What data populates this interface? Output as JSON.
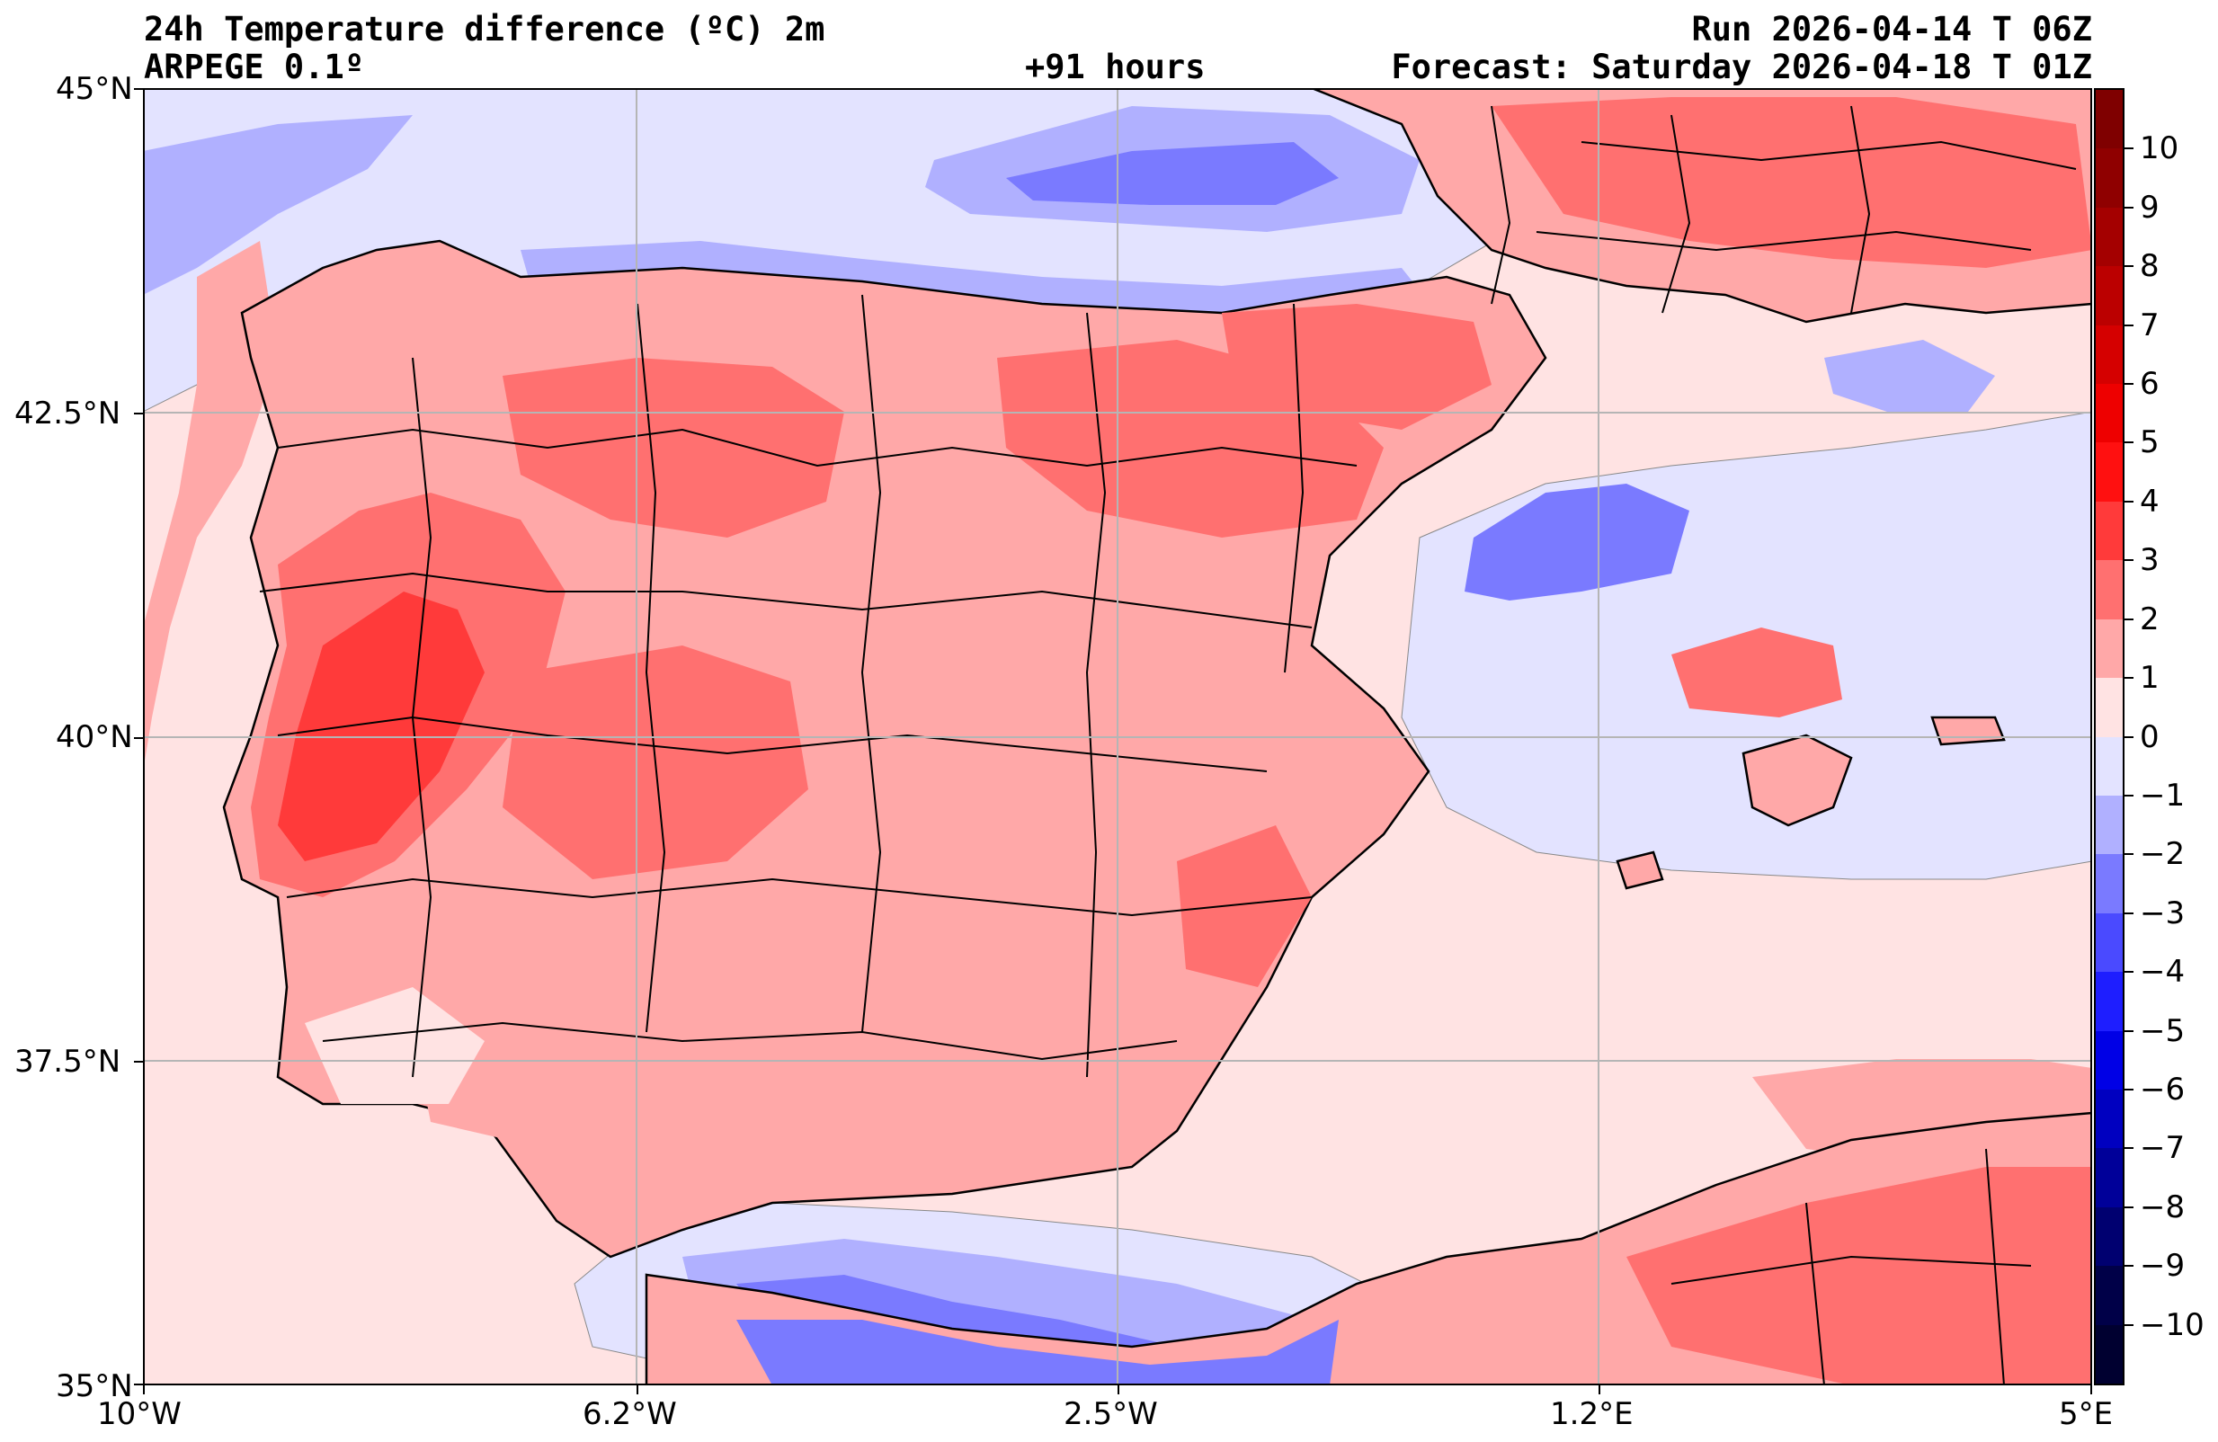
{
  "header": {
    "title": "24h Temperature difference (ºC) 2m",
    "model": "ARPEGE 0.1º",
    "lead_time": "+91 hours",
    "run": "Run 2026-04-14 T 06Z",
    "forecast": "Forecast: Saturday 2026-04-18 T 01Z"
  },
  "axes": {
    "lat_labels": [
      "45°N",
      "42.5°N",
      "40°N",
      "37.5°N",
      "35°N"
    ],
    "lon_labels": [
      "10°W",
      "6.2°W",
      "2.5°W",
      "1.2°E",
      "5°E"
    ]
  },
  "colorbar": {
    "labels": [
      "10",
      "9",
      "8",
      "7",
      "6",
      "5",
      "4",
      "3",
      "2",
      "1",
      "0",
      "−1",
      "−2",
      "−3",
      "−4",
      "−5",
      "−6",
      "−7",
      "−8",
      "−9",
      "−10"
    ],
    "colors": [
      "#7f0000",
      "#8f0000",
      "#a40000",
      "#bb0000",
      "#d50000",
      "#ee0000",
      "#ff1010",
      "#ff3a3a",
      "#ff7070",
      "#ffa8a8",
      "#ffe3e3",
      "#e3e3ff",
      "#b0b0ff",
      "#7a7aff",
      "#4a4aff",
      "#1e1eff",
      "#0000e6",
      "#0000c0",
      "#000099",
      "#000070",
      "#000048"
    ]
  },
  "map": {
    "extent": {
      "lon": [
        -10,
        5
      ],
      "lat": [
        35,
        45
      ]
    },
    "field": "24h Temperature difference 2m",
    "units": "ºC",
    "projection": "PlateCarree",
    "grid": true
  }
}
